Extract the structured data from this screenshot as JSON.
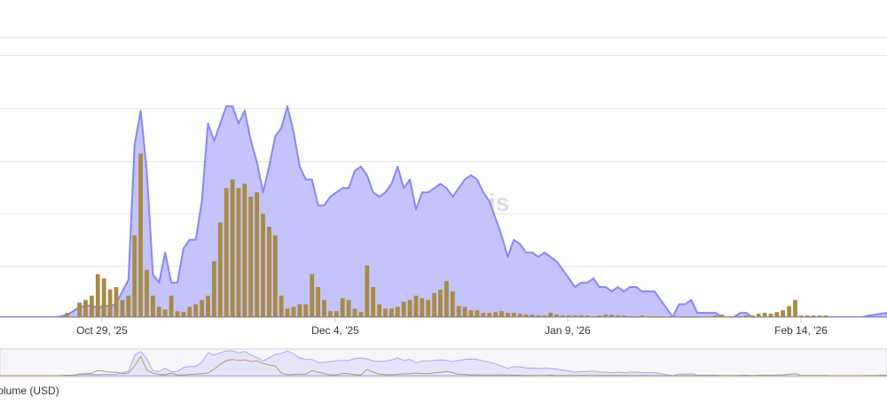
{
  "watermark": "Artemis",
  "legend_label": "Volume (USD)",
  "colors": {
    "area_fill": "#c5c3fb",
    "area_line": "#8a87ee",
    "bar": "#a98a45",
    "grid": "#e6e6e6",
    "navigator_border": "#cfcfd6"
  },
  "chart_data": {
    "type": "area",
    "x_tick_labels": [
      "Oct 29, '25",
      "Dec 4, '25",
      "Jan 9, '26",
      "Feb 14, '26"
    ],
    "grid": true,
    "navigator": true,
    "series": [
      {
        "type": "area",
        "values": [
          0,
          0,
          0,
          0,
          0,
          0,
          0,
          0,
          0,
          0,
          1,
          3,
          7,
          12,
          13,
          14,
          10,
          14,
          12,
          16,
          30,
          43,
          200,
          240,
          170,
          50,
          40,
          75,
          40,
          40,
          80,
          90,
          90,
          135,
          225,
          205,
          225,
          245,
          245,
          225,
          240,
          205,
          180,
          145,
          175,
          210,
          220,
          245,
          215,
          175,
          160,
          160,
          130,
          130,
          140,
          145,
          150,
          150,
          170,
          175,
          165,
          145,
          140,
          145,
          155,
          175,
          150,
          160,
          125,
          145,
          145,
          150,
          155,
          150,
          140,
          150,
          160,
          165,
          160,
          145,
          135,
          115,
          95,
          70,
          90,
          85,
          75,
          75,
          70,
          75,
          70,
          65,
          55,
          45,
          35,
          40,
          40,
          45,
          35,
          35,
          30,
          35,
          30,
          35,
          35,
          30,
          30,
          30,
          20,
          10,
          0,
          15,
          15,
          20,
          5,
          5,
          5,
          5,
          0,
          0,
          0,
          5,
          5,
          0,
          0,
          0,
          0,
          0,
          0,
          0,
          0,
          0,
          0,
          0,
          0,
          0,
          0,
          0,
          0,
          0,
          0,
          0,
          2,
          3,
          4,
          5
        ]
      },
      {
        "type": "bar",
        "values": [
          0,
          0,
          0,
          0,
          0,
          0,
          0,
          0,
          0,
          0,
          0,
          5,
          0,
          17,
          20,
          25,
          50,
          45,
          32,
          35,
          20,
          25,
          95,
          190,
          55,
          25,
          12,
          9,
          25,
          7,
          6,
          12,
          15,
          20,
          25,
          65,
          110,
          150,
          160,
          150,
          155,
          140,
          145,
          120,
          105,
          95,
          25,
          10,
          12,
          15,
          15,
          50,
          35,
          20,
          7,
          7,
          22,
          20,
          10,
          6,
          60,
          35,
          15,
          10,
          10,
          12,
          18,
          20,
          25,
          22,
          20,
          28,
          32,
          42,
          30,
          13,
          12,
          8,
          8,
          5,
          5,
          6,
          7,
          5,
          5,
          4,
          3,
          3,
          2,
          2,
          5,
          3,
          2,
          2,
          2,
          2,
          2,
          1,
          2,
          3,
          3,
          2,
          2,
          1,
          1,
          2,
          1,
          1,
          1,
          1,
          1,
          0,
          1,
          1,
          1,
          0,
          1,
          2,
          3,
          1,
          1,
          1,
          2,
          2,
          4,
          5,
          4,
          6,
          8,
          13,
          20,
          2,
          2,
          2,
          2,
          2,
          0,
          0,
          0,
          0,
          0,
          0,
          0,
          0,
          0,
          0
        ]
      }
    ]
  }
}
